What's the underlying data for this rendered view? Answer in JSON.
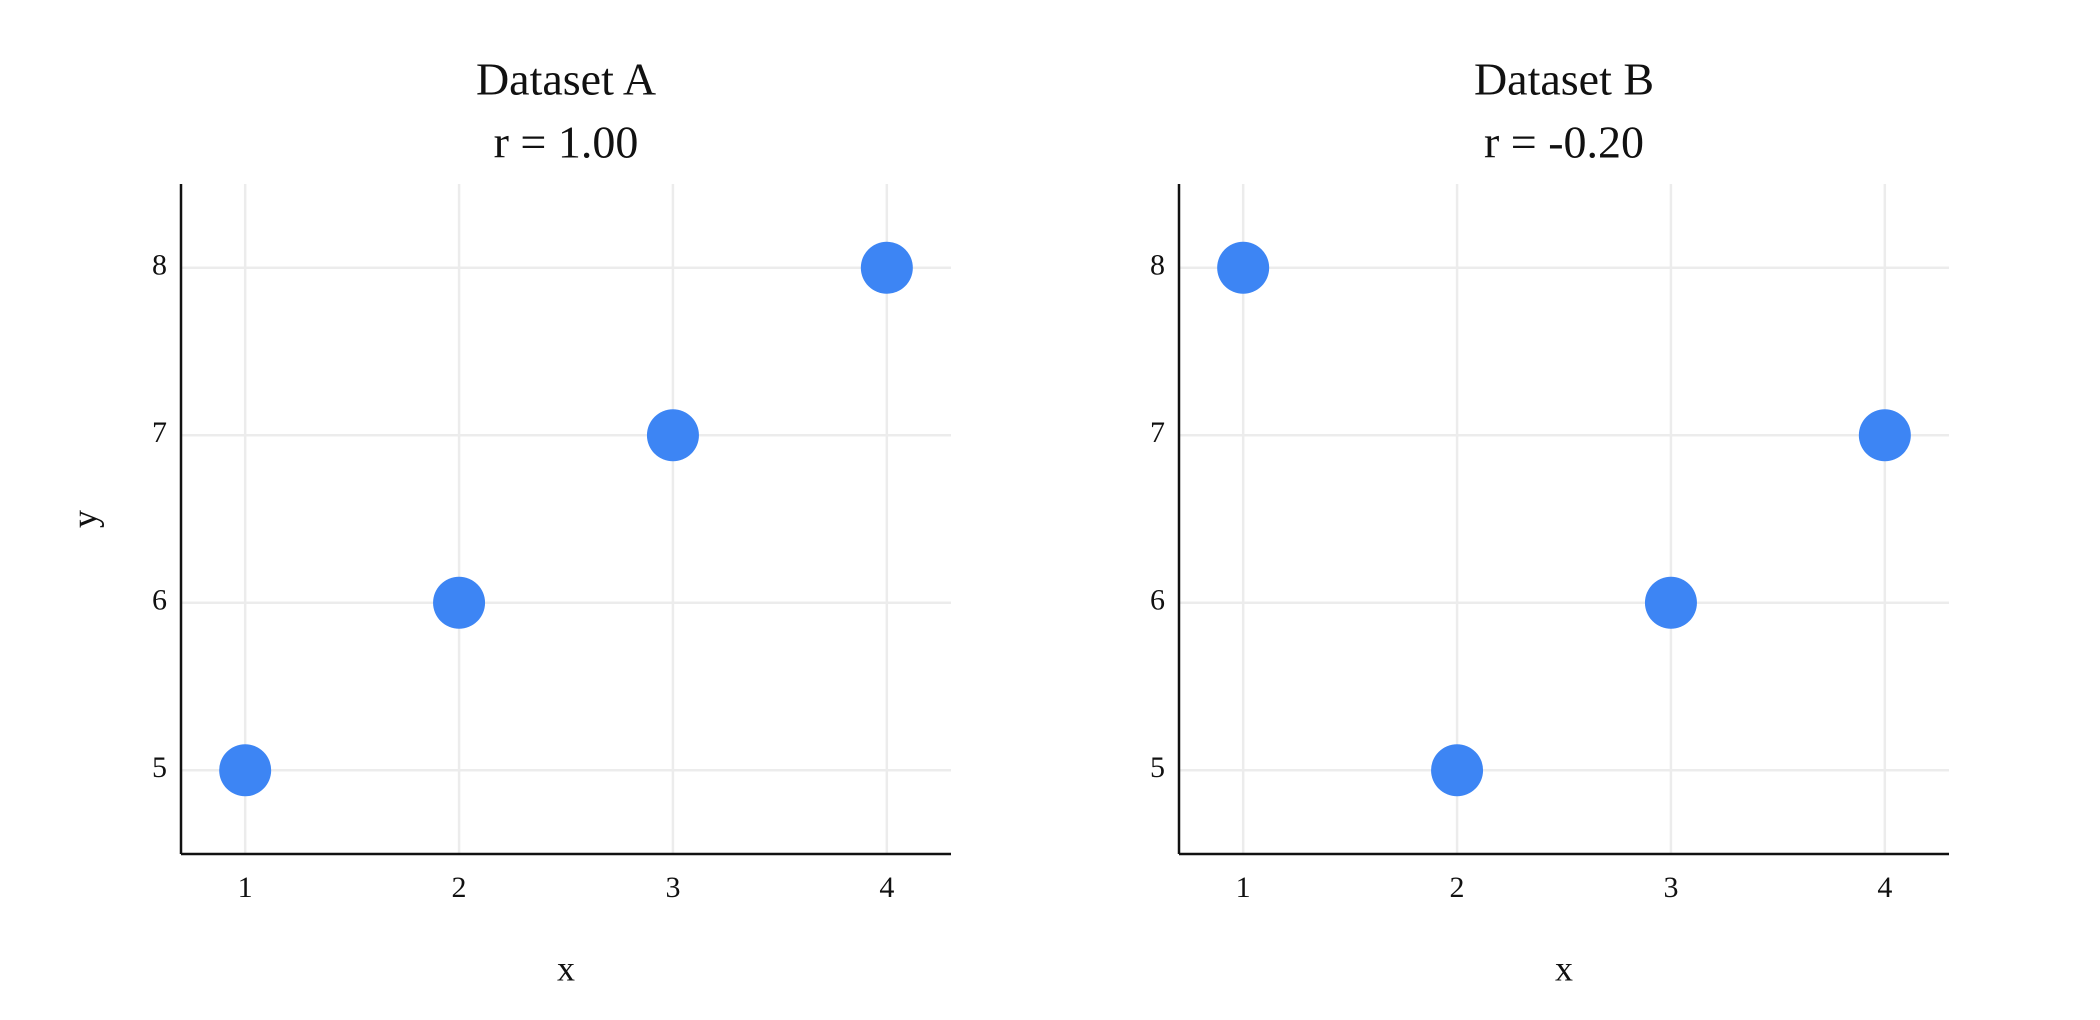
{
  "chart_data": [
    {
      "type": "scatter",
      "title": "Dataset A",
      "subtitle": "r = 1.00",
      "xlabel": "x",
      "ylabel": "y",
      "x": [
        1,
        2,
        3,
        4
      ],
      "values": [
        5,
        6,
        7,
        8
      ],
      "color": "#3d85f4",
      "xlim": [
        0.7,
        4.3
      ],
      "ylim": [
        4.5,
        8.5
      ],
      "xticks": [
        1,
        2,
        3,
        4
      ],
      "yticks": [
        5,
        6,
        7,
        8
      ],
      "grid": true
    },
    {
      "type": "scatter",
      "title": "Dataset B",
      "subtitle": "r = -0.20",
      "xlabel": "x",
      "x": [
        1,
        2,
        3,
        4
      ],
      "values": [
        8,
        5,
        6,
        7
      ],
      "color": "#3d85f4",
      "xlim": [
        0.7,
        4.3
      ],
      "ylim": [
        4.5,
        8.5
      ],
      "xticks": [
        1,
        2,
        3,
        4
      ],
      "yticks": [
        5,
        6,
        7,
        8
      ],
      "grid": true
    }
  ]
}
